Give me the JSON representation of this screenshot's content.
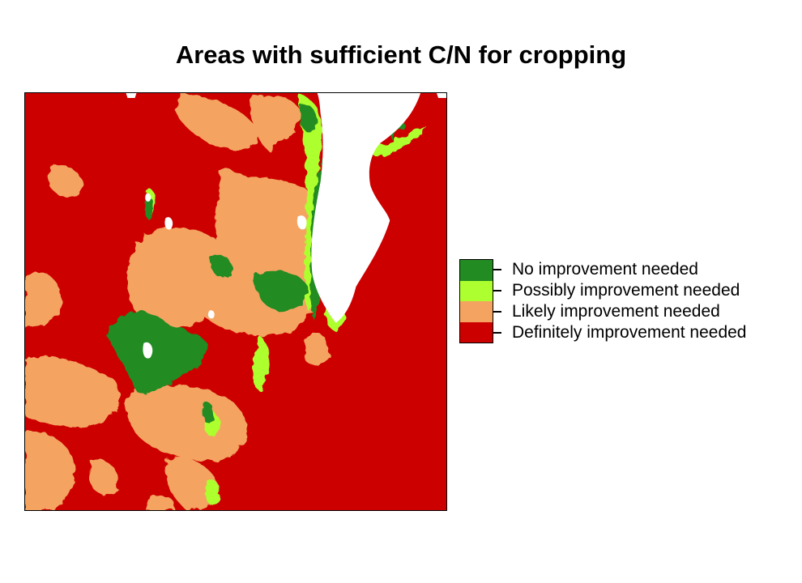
{
  "title": "Areas with sufficient C/N for cropping",
  "colors": {
    "no_improvement": "#228B22",
    "possibly": "#ADFF2F",
    "likely": "#F4A460",
    "definitely": "#CD0000",
    "nodata": "#FFFFFF"
  },
  "legend": {
    "items": [
      {
        "label": "No improvement needed",
        "color": "#228B22"
      },
      {
        "label": "Possibly improvement needed",
        "color": "#ADFF2F"
      },
      {
        "label": "Likely improvement needed",
        "color": "#F4A460"
      },
      {
        "label": "Definitely improvement needed",
        "color": "#CD0000"
      }
    ]
  }
}
